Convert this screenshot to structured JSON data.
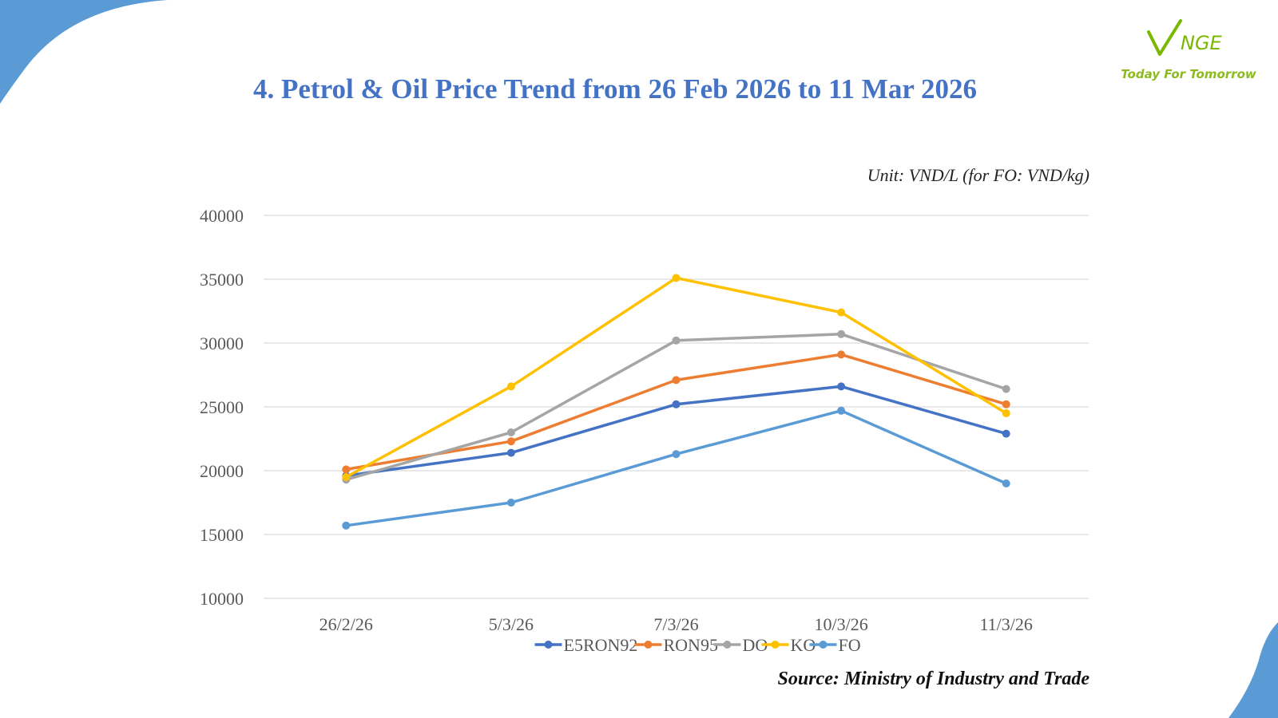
{
  "slide": {
    "title": "4. Petrol & Oil Price Trend from 26 Feb 2026 to 11 Mar 2026",
    "unit_note": "Unit: VND/L (for FO: VND/kg)",
    "source": "Source: Ministry of Industry and Trade",
    "accent_color": "#4472C4",
    "corner_color": "#5B9BD5"
  },
  "logo": {
    "wordmark": "NGE",
    "tagline": "Today For Tomorrow",
    "color": "#7AB800"
  },
  "chart_data": {
    "type": "line",
    "categories": [
      "26/2/26",
      "5/3/26",
      "7/3/26",
      "10/3/26",
      "11/3/26"
    ],
    "ylim": [
      10000,
      40000
    ],
    "yticks": [
      40000,
      35000,
      30000,
      25000,
      20000,
      15000,
      10000
    ],
    "grid": true,
    "legend_position": "bottom",
    "series": [
      {
        "name": "E5RON92",
        "color": "#4472C4",
        "values": [
          19600,
          21400,
          25200,
          26600,
          22900
        ]
      },
      {
        "name": "RON95",
        "color": "#ED7D31",
        "values": [
          20100,
          22300,
          27100,
          29100,
          25200
        ]
      },
      {
        "name": "DO",
        "color": "#A5A5A5",
        "values": [
          19300,
          23000,
          30200,
          30700,
          26400
        ]
      },
      {
        "name": "KO",
        "color": "#FFC000",
        "values": [
          19500,
          26600,
          35100,
          32400,
          24500
        ]
      },
      {
        "name": "FO",
        "color": "#5B9BD5",
        "values": [
          15700,
          17500,
          21300,
          24700,
          19000
        ]
      }
    ]
  }
}
